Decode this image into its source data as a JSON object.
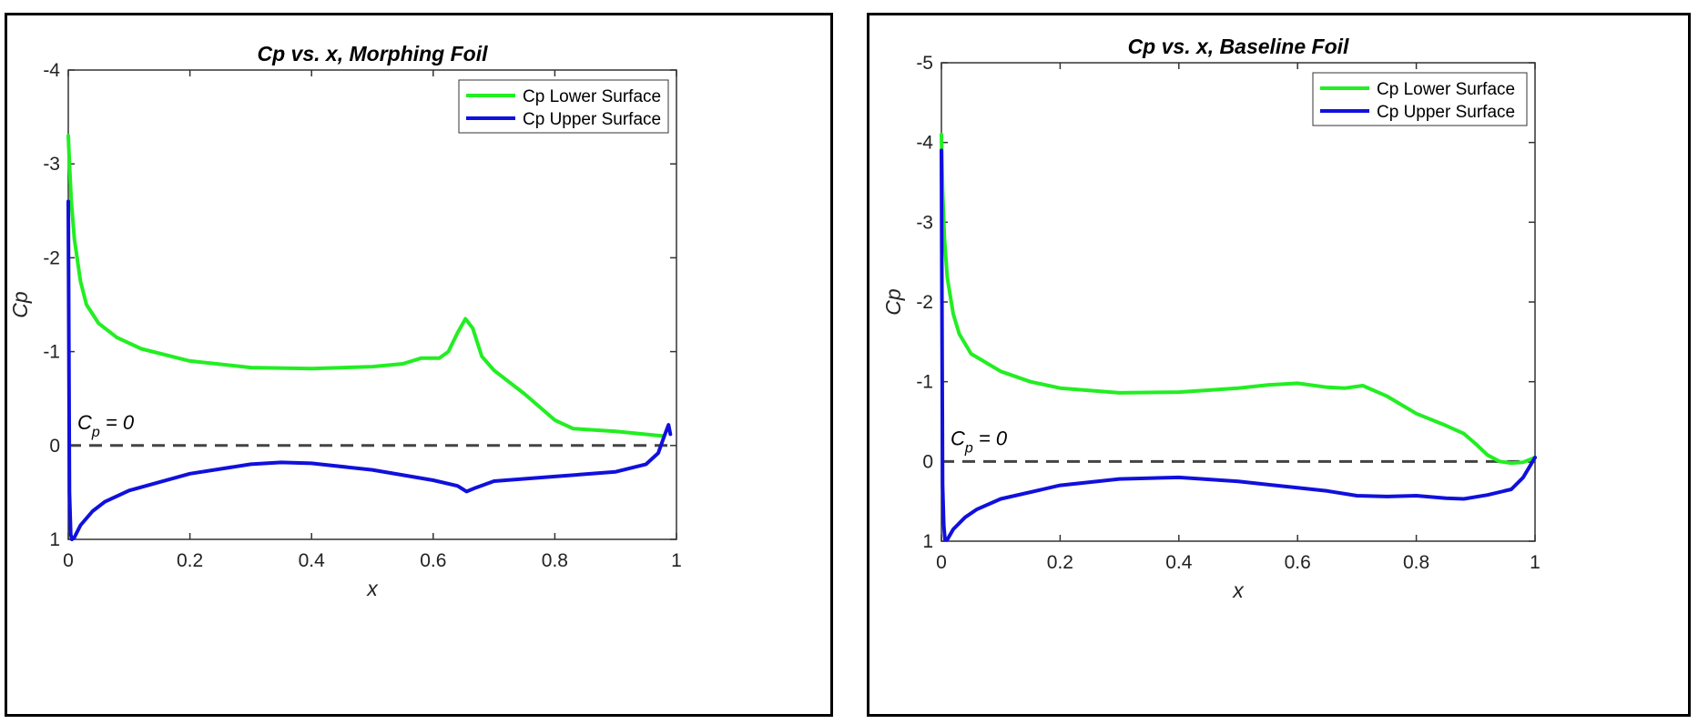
{
  "chart_data": [
    {
      "type": "line",
      "title": "Cp vs. x, Morphing Foil",
      "xlabel": "x",
      "ylabel": "Cp",
      "xlim": [
        0,
        1
      ],
      "ylim": [
        -4,
        1
      ],
      "y_reversed": true,
      "xticks": [
        "0",
        "0.2",
        "0.4",
        "0.6",
        "0.8",
        "1"
      ],
      "yticks": [
        "-4",
        "-3",
        "-2",
        "-1",
        "0",
        "1"
      ],
      "legend_position": "top-right",
      "annotation": {
        "main": "C",
        "sub": "p",
        "rest": " = 0"
      },
      "series": [
        {
          "name": "Cp Lower Surface",
          "color": "#22ee22",
          "x": [
            0.0,
            0.002,
            0.005,
            0.01,
            0.02,
            0.03,
            0.05,
            0.08,
            0.12,
            0.2,
            0.3,
            0.4,
            0.5,
            0.55,
            0.58,
            0.61,
            0.625,
            0.64,
            0.653,
            0.665,
            0.68,
            0.7,
            0.75,
            0.8,
            0.83,
            0.9,
            0.98
          ],
          "y": [
            -3.3,
            -3.0,
            -2.6,
            -2.2,
            -1.75,
            -1.5,
            -1.3,
            -1.15,
            -1.03,
            -0.9,
            -0.83,
            -0.82,
            -0.84,
            -0.87,
            -0.93,
            -0.93,
            -1.0,
            -1.2,
            -1.35,
            -1.25,
            -0.95,
            -0.8,
            -0.55,
            -0.27,
            -0.18,
            -0.15,
            -0.1
          ]
        },
        {
          "name": "Cp Upper Surface",
          "color": "#1010dd",
          "x": [
            0.0,
            0.002,
            0.004,
            0.006,
            0.01,
            0.02,
            0.04,
            0.06,
            0.1,
            0.2,
            0.3,
            0.35,
            0.4,
            0.5,
            0.6,
            0.64,
            0.655,
            0.67,
            0.7,
            0.8,
            0.9,
            0.95,
            0.97,
            0.98,
            0.987,
            0.99
          ],
          "y": [
            -2.6,
            0.5,
            0.95,
            1.0,
            0.98,
            0.85,
            0.7,
            0.6,
            0.48,
            0.3,
            0.2,
            0.18,
            0.19,
            0.26,
            0.37,
            0.43,
            0.49,
            0.45,
            0.38,
            0.33,
            0.28,
            0.2,
            0.08,
            -0.1,
            -0.22,
            -0.12
          ]
        }
      ]
    },
    {
      "type": "line",
      "title": "Cp vs. x, Baseline Foil",
      "xlabel": "x",
      "ylabel": "Cp",
      "xlim": [
        0,
        1
      ],
      "ylim": [
        -5,
        1
      ],
      "y_reversed": true,
      "xticks": [
        "0",
        "0.2",
        "0.4",
        "0.6",
        "0.8",
        "1"
      ],
      "yticks": [
        "-5",
        "-4",
        "-3",
        "-2",
        "-1",
        "0",
        "1"
      ],
      "legend_position": "top-right",
      "annotation": {
        "main": "C",
        "sub": "p",
        "rest": " = 0"
      },
      "series": [
        {
          "name": "Cp Lower Surface",
          "color": "#22ee22",
          "x": [
            0.0,
            0.002,
            0.005,
            0.01,
            0.02,
            0.03,
            0.05,
            0.1,
            0.15,
            0.2,
            0.3,
            0.4,
            0.5,
            0.55,
            0.6,
            0.65,
            0.68,
            0.71,
            0.75,
            0.8,
            0.85,
            0.88,
            0.9,
            0.92,
            0.94,
            0.96,
            0.98,
            1.0
          ],
          "y": [
            -4.1,
            -3.4,
            -2.8,
            -2.3,
            -1.85,
            -1.6,
            -1.35,
            -1.13,
            -1.0,
            -0.92,
            -0.86,
            -0.87,
            -0.92,
            -0.96,
            -0.98,
            -0.93,
            -0.92,
            -0.95,
            -0.82,
            -0.6,
            -0.45,
            -0.35,
            -0.22,
            -0.08,
            0.0,
            0.02,
            0.01,
            -0.05
          ]
        },
        {
          "name": "Cp Upper Surface",
          "color": "#1010dd",
          "x": [
            0.0,
            0.002,
            0.004,
            0.006,
            0.01,
            0.02,
            0.04,
            0.06,
            0.1,
            0.2,
            0.3,
            0.4,
            0.5,
            0.6,
            0.65,
            0.7,
            0.75,
            0.8,
            0.85,
            0.88,
            0.92,
            0.96,
            0.98,
            1.0
          ],
          "y": [
            -3.9,
            0.3,
            0.8,
            0.98,
            0.98,
            0.85,
            0.7,
            0.6,
            0.47,
            0.3,
            0.22,
            0.2,
            0.25,
            0.33,
            0.37,
            0.43,
            0.44,
            0.43,
            0.46,
            0.47,
            0.42,
            0.35,
            0.2,
            -0.05
          ]
        }
      ]
    }
  ]
}
